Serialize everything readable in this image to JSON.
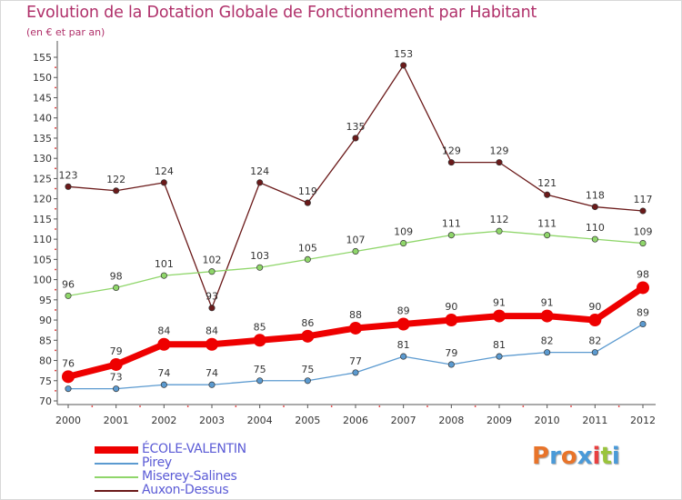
{
  "title": "Evolution de la Dotation Globale de Fonctionnement par Habitant",
  "subtitle": "(en € et par an)",
  "logo": {
    "text": "Proxiti",
    "colors": [
      "#e8742a",
      "#4a9ad8",
      "#e8742a",
      "#4a9ad8",
      "#e84040",
      "#9ac43c",
      "#4a9ad8"
    ]
  },
  "chart_data": {
    "type": "line",
    "x": [
      2000,
      2001,
      2002,
      2003,
      2004,
      2005,
      2006,
      2007,
      2008,
      2009,
      2010,
      2011,
      2012
    ],
    "ylim": [
      70,
      155
    ],
    "yticks": [
      70,
      75,
      80,
      85,
      90,
      95,
      100,
      105,
      110,
      115,
      120,
      125,
      130,
      135,
      140,
      145,
      150,
      155
    ],
    "grid": false,
    "legend_position": "bottom-left",
    "series": [
      {
        "name": "Auxon-Dessus",
        "color": "#6b1a1a",
        "values": [
          123,
          122,
          124,
          93,
          124,
          119,
          135,
          153,
          129,
          129,
          121,
          118,
          117
        ]
      },
      {
        "name": "Miserey-Salines",
        "color": "#8fd66a",
        "values": [
          96,
          98,
          101,
          102,
          103,
          105,
          107,
          109,
          111,
          112,
          111,
          110,
          109
        ]
      },
      {
        "name": "Pirey",
        "color": "#5b9ad0",
        "values": [
          73,
          73,
          74,
          74,
          75,
          75,
          77,
          81,
          79,
          81,
          82,
          82,
          89
        ]
      },
      {
        "name": "ÉCOLE-VALENTIN",
        "color": "#ee0000",
        "values": [
          76,
          79,
          84,
          84,
          85,
          86,
          88,
          89,
          90,
          91,
          91,
          90,
          98
        ]
      }
    ],
    "legend_order": [
      "ÉCOLE-VALENTIN",
      "Pirey",
      "Miserey-Salines",
      "Auxon-Dessus"
    ]
  }
}
